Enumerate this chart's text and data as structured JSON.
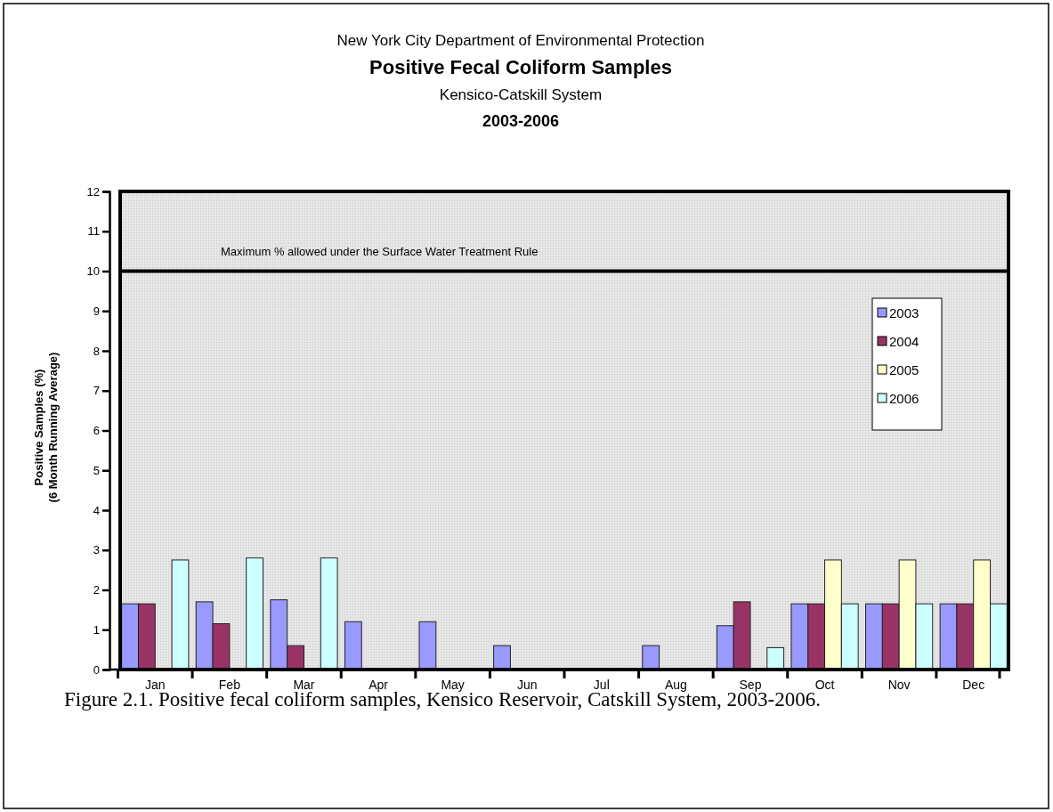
{
  "chart_data": {
    "type": "bar",
    "title": "Positive Fecal Coliform Samples",
    "subtitle": "Kensico-Catskill System",
    "annotations": [
      "New York City Department of Environmental Protection",
      "2003-2006",
      "Figure 2.1.  Positive fecal coliform samples, Kensico Reservoir, Catskill System, 2003-2006."
    ],
    "ylabel": "Positive Samples (%)\n(6 Month Running Average)",
    "categories": [
      "Jan",
      "Feb",
      "Mar",
      "Apr",
      "May",
      "Jun",
      "Jul",
      "Aug",
      "Sep",
      "Oct",
      "Nov",
      "Dec"
    ],
    "series": [
      {
        "name": "2003",
        "color": "#9999ff",
        "values": [
          1.65,
          1.7,
          1.75,
          1.2,
          1.2,
          0.6,
          0,
          0.6,
          1.1,
          1.65,
          1.65,
          1.65
        ]
      },
      {
        "name": "2004",
        "color": "#993366",
        "values": [
          1.65,
          1.15,
          0.6,
          0,
          0,
          0,
          0,
          0,
          1.7,
          1.65,
          1.65,
          1.65
        ]
      },
      {
        "name": "2005",
        "color": "#ffffcc",
        "values": [
          0,
          0,
          0,
          0,
          0,
          0,
          0,
          0,
          0,
          2.75,
          2.75,
          2.75
        ]
      },
      {
        "name": "2006",
        "color": "#ccffff",
        "values": [
          2.75,
          2.8,
          2.8,
          0,
          0,
          0,
          0,
          0,
          0.55,
          1.65,
          1.65,
          1.65
        ]
      }
    ],
    "ylim": [
      0,
      12
    ],
    "yticks": [
      0,
      1,
      2,
      3,
      4,
      5,
      6,
      7,
      8,
      9,
      10,
      11,
      12
    ],
    "ref_lines": [
      {
        "axis": "y",
        "value": 10,
        "label": "Maximum % allowed under the Surface Water Treatment Rule",
        "color": "#000000"
      }
    ],
    "legend": "right"
  }
}
